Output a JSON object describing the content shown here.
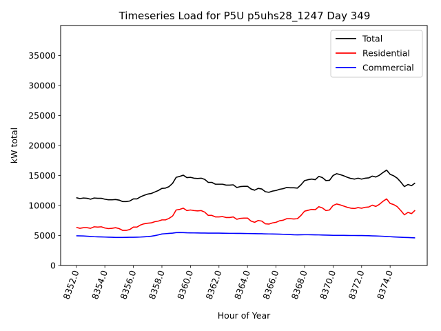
{
  "chart_data": {
    "type": "line",
    "title": "Timeseries Load for P5U p5uhs28_1247  Day 349",
    "xlabel": "Hour of Year",
    "ylabel": "kW total",
    "xlim": [
      8350.9,
      8376.6
    ],
    "ylim": [
      0,
      40000
    ],
    "xticks": [
      8352,
      8354,
      8356,
      8358,
      8360,
      8362,
      8364,
      8366,
      8368,
      8370,
      8372,
      8374
    ],
    "xtick_labels": [
      "8352.0",
      "8354.0",
      "8356.0",
      "8358.0",
      "8360.0",
      "8362.0",
      "8364.0",
      "8366.0",
      "8368.0",
      "8370.0",
      "8372.0",
      "8374.0"
    ],
    "yticks": [
      0,
      5000,
      10000,
      15000,
      20000,
      25000,
      30000,
      35000
    ],
    "ytick_labels": [
      "0",
      "5000",
      "10000",
      "15000",
      "20000",
      "25000",
      "30000",
      "35000"
    ],
    "legend_position": "top-right",
    "x": [
      8352.0,
      8352.25,
      8352.5,
      8352.75,
      8353.0,
      8353.25,
      8353.5,
      8353.75,
      8354.0,
      8354.25,
      8354.5,
      8354.75,
      8355.0,
      8355.25,
      8355.5,
      8355.75,
      8356.0,
      8356.25,
      8356.5,
      8356.75,
      8357.0,
      8357.25,
      8357.5,
      8357.75,
      8358.0,
      8358.25,
      8358.5,
      8358.75,
      8359.0,
      8359.25,
      8359.5,
      8359.75,
      8360.0,
      8360.25,
      8360.5,
      8360.75,
      8361.0,
      8361.25,
      8361.5,
      8361.75,
      8362.0,
      8362.25,
      8362.5,
      8362.75,
      8363.0,
      8363.25,
      8363.5,
      8363.75,
      8364.0,
      8364.25,
      8364.5,
      8364.75,
      8365.0,
      8365.25,
      8365.5,
      8365.75,
      8366.0,
      8366.25,
      8366.5,
      8366.75,
      8367.0,
      8367.25,
      8367.5,
      8367.75,
      8368.0,
      8368.25,
      8368.5,
      8368.75,
      8369.0,
      8369.25,
      8369.5,
      8369.75,
      8370.0,
      8370.25,
      8370.5,
      8370.75,
      8371.0,
      8371.25,
      8371.5,
      8371.75,
      8372.0,
      8372.25,
      8372.5,
      8372.75,
      8373.0,
      8373.25,
      8373.5,
      8373.75,
      8374.0,
      8374.25,
      8374.5,
      8374.75,
      8375.0,
      8375.25,
      8375.5,
      8375.75
    ],
    "series": [
      {
        "name": "Total",
        "color": "#000000",
        "values": [
          11300,
          11150,
          11250,
          11200,
          11050,
          11250,
          11200,
          11200,
          11050,
          10950,
          10950,
          11000,
          10900,
          10650,
          10650,
          10750,
          11100,
          11100,
          11450,
          11700,
          11900,
          12000,
          12250,
          12500,
          12850,
          12900,
          13150,
          13700,
          14700,
          14850,
          15050,
          14650,
          14700,
          14550,
          14500,
          14550,
          14350,
          13850,
          13850,
          13550,
          13550,
          13550,
          13400,
          13400,
          13450,
          13000,
          13150,
          13200,
          13200,
          12750,
          12550,
          12850,
          12750,
          12300,
          12200,
          12400,
          12500,
          12700,
          12800,
          13000,
          12950,
          12950,
          12900,
          13450,
          14150,
          14300,
          14400,
          14300,
          14850,
          14650,
          14150,
          14200,
          15000,
          15300,
          15150,
          14950,
          14700,
          14500,
          14400,
          14550,
          14400,
          14550,
          14600,
          14900,
          14750,
          15050,
          15500,
          15900,
          15200,
          14950,
          14550,
          13900,
          13150,
          13500,
          13300,
          13750
        ]
      },
      {
        "name": "Residential",
        "color": "#ff0000",
        "values": [
          6350,
          6200,
          6300,
          6300,
          6200,
          6450,
          6400,
          6450,
          6250,
          6150,
          6200,
          6300,
          6150,
          5850,
          5850,
          6000,
          6400,
          6400,
          6750,
          6950,
          7050,
          7100,
          7300,
          7400,
          7600,
          7600,
          7850,
          8250,
          9250,
          9350,
          9550,
          9150,
          9250,
          9150,
          9100,
          9150,
          8900,
          8350,
          8350,
          8100,
          8100,
          8150,
          8000,
          8000,
          8100,
          7700,
          7850,
          7900,
          7900,
          7400,
          7200,
          7500,
          7400,
          6950,
          6900,
          7100,
          7200,
          7450,
          7550,
          7800,
          7800,
          7750,
          7800,
          8350,
          9050,
          9200,
          9350,
          9300,
          9800,
          9600,
          9150,
          9250,
          10000,
          10250,
          10100,
          9900,
          9700,
          9550,
          9500,
          9650,
          9550,
          9700,
          9750,
          10050,
          9850,
          10200,
          10700,
          11100,
          10350,
          10150,
          9800,
          9150,
          8450,
          8850,
          8650,
          9200
        ]
      },
      {
        "name": "Commercial",
        "color": "#0000ff",
        "values": [
          4950,
          4940,
          4920,
          4880,
          4840,
          4800,
          4780,
          4760,
          4740,
          4720,
          4700,
          4680,
          4680,
          4680,
          4690,
          4700,
          4700,
          4720,
          4740,
          4780,
          4820,
          4880,
          4980,
          5100,
          5250,
          5300,
          5350,
          5400,
          5480,
          5500,
          5480,
          5450,
          5440,
          5430,
          5420,
          5410,
          5410,
          5400,
          5400,
          5390,
          5390,
          5380,
          5370,
          5360,
          5360,
          5350,
          5350,
          5340,
          5330,
          5320,
          5310,
          5300,
          5290,
          5270,
          5260,
          5250,
          5240,
          5220,
          5200,
          5180,
          5150,
          5120,
          5110,
          5120,
          5130,
          5130,
          5120,
          5110,
          5100,
          5080,
          5060,
          5050,
          5030,
          5020,
          5020,
          5020,
          5010,
          5000,
          5000,
          4990,
          4990,
          4980,
          4960,
          4940,
          4920,
          4900,
          4870,
          4840,
          4800,
          4760,
          4730,
          4700,
          4680,
          4660,
          4630,
          4600
        ]
      }
    ]
  }
}
